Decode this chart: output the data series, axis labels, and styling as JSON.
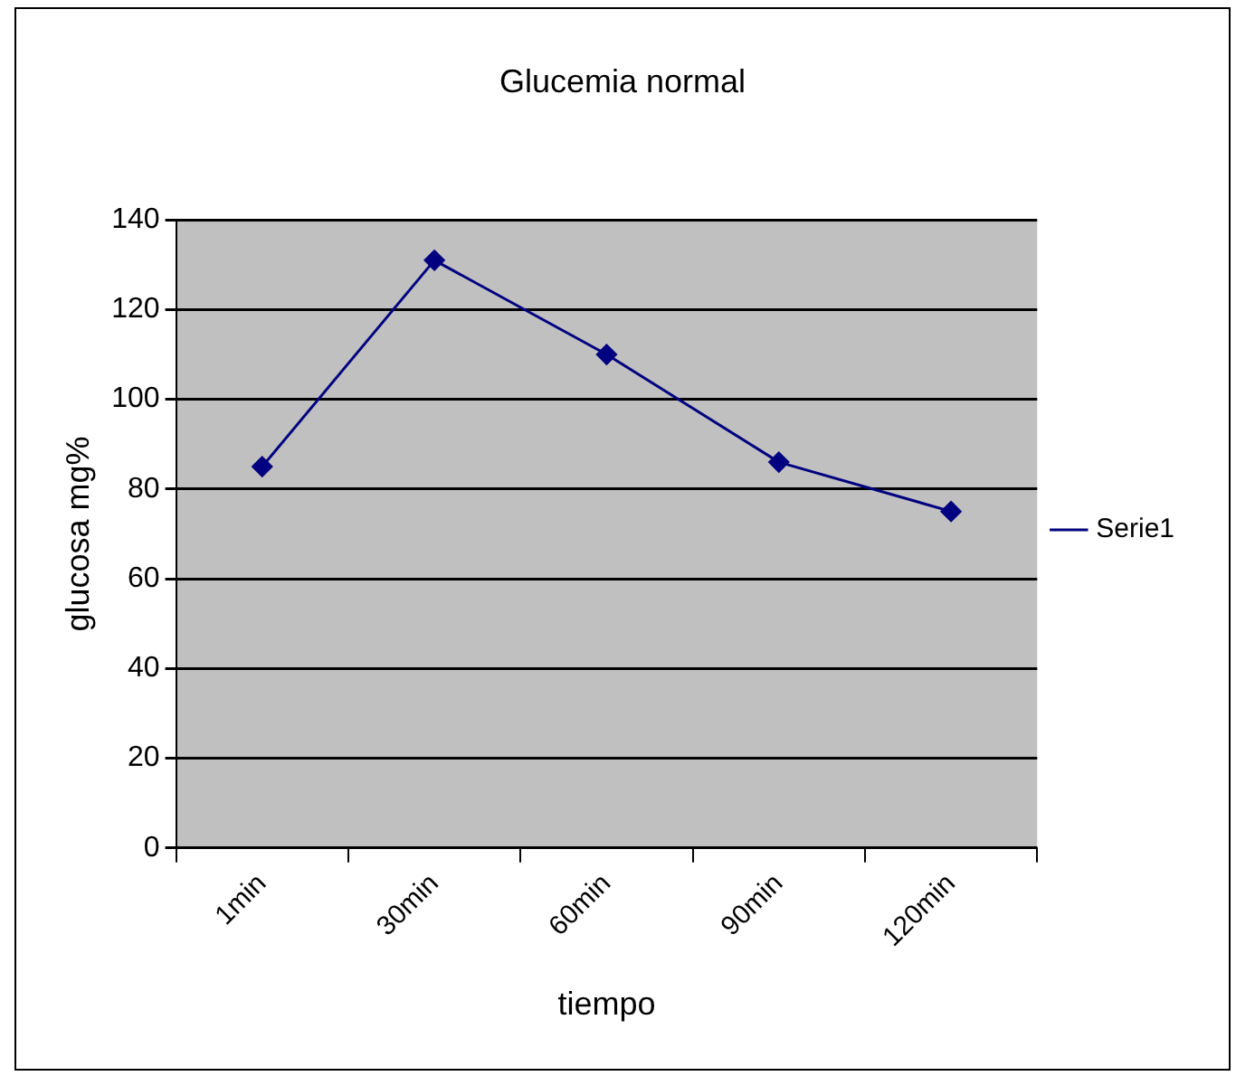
{
  "chart_data": {
    "type": "line",
    "title": "Glucemia normal",
    "xlabel": "tiempo",
    "ylabel": "glucosa mg%",
    "categories": [
      "1min",
      "30min",
      "60min",
      "90min",
      "120min"
    ],
    "series": [
      {
        "name": "Serie1",
        "color": "#000080",
        "values": [
          85,
          131,
          110,
          86,
          75
        ]
      }
    ],
    "ylim": [
      0,
      140
    ],
    "yticks": [
      0,
      20,
      40,
      60,
      80,
      100,
      120,
      140
    ],
    "grid": "y",
    "legend": "right",
    "marker": "diamond",
    "line_style": "solid"
  }
}
